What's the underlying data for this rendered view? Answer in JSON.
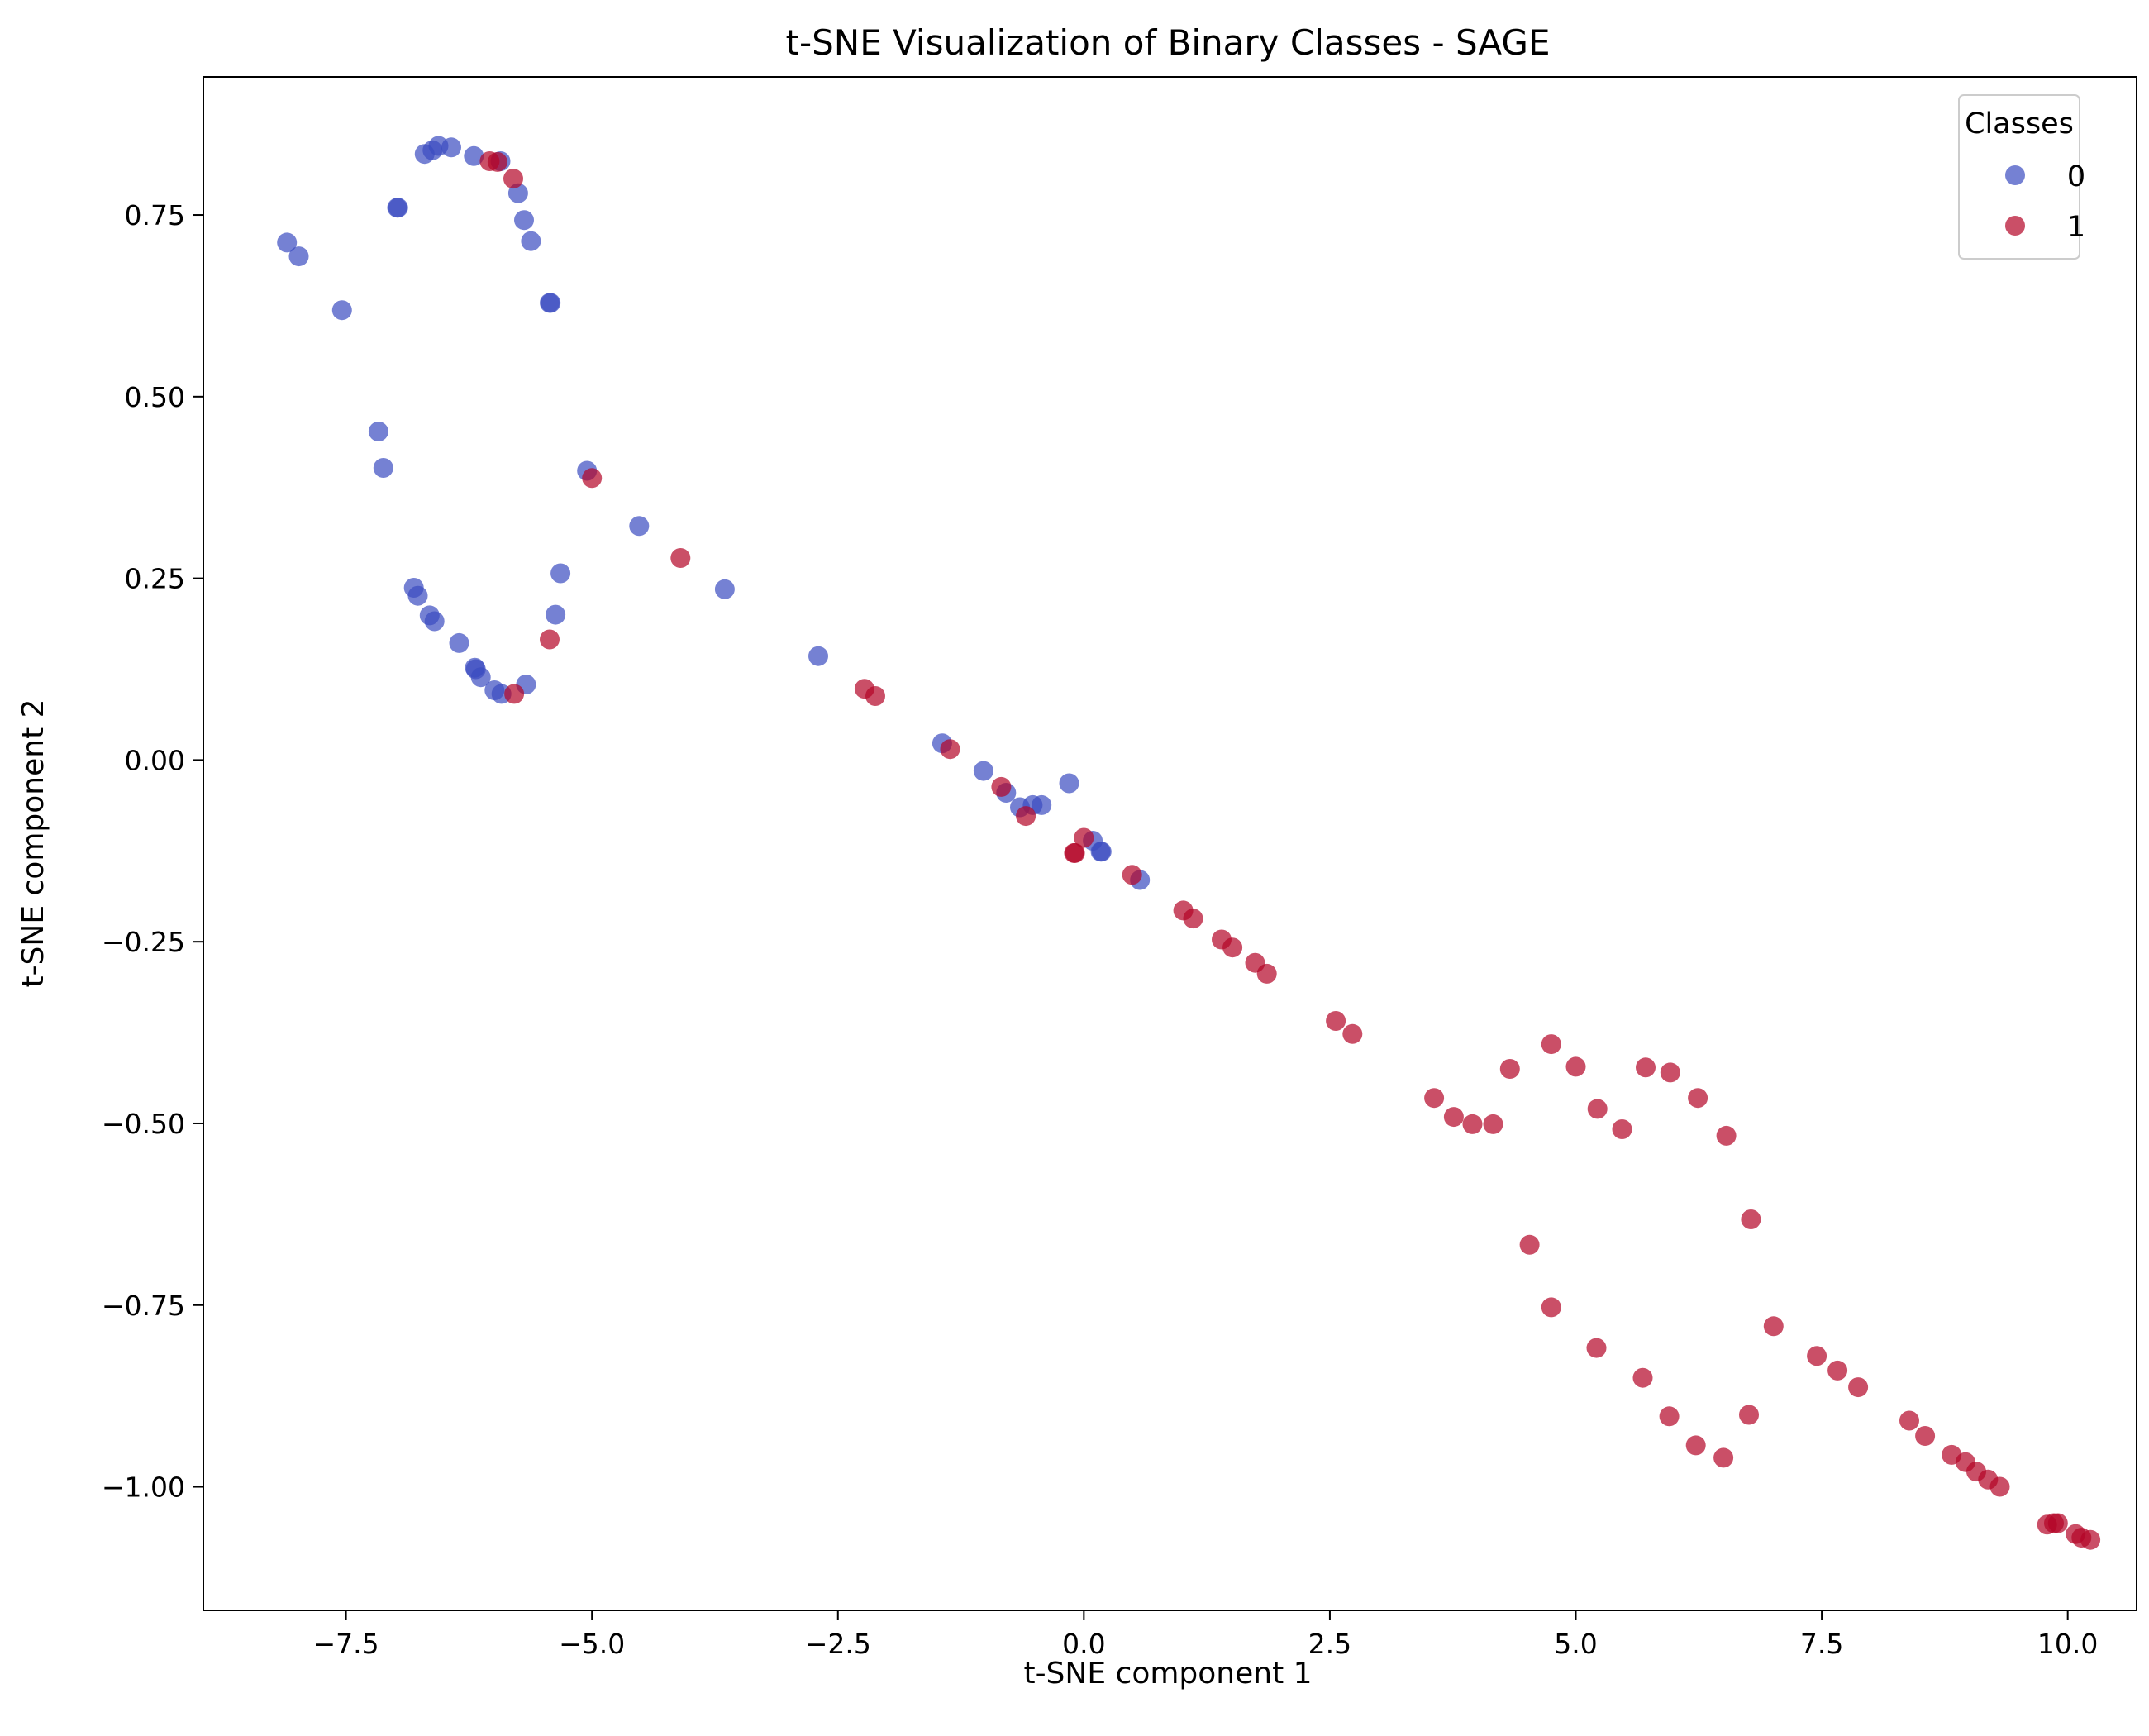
{
  "chart_data": {
    "type": "scatter",
    "title": "t-SNE Visualization of Binary Classes - SAGE",
    "xlabel": "t-SNE component 1",
    "ylabel": "t-SNE component 2",
    "xlim": [
      -8.95,
      10.7
    ],
    "ylim": [
      -1.17,
      0.94
    ],
    "xticks": [
      -7.5,
      -5.0,
      -2.5,
      0.0,
      2.5,
      5.0,
      7.5,
      10.0
    ],
    "xtick_labels": [
      "−7.5",
      "−5.0",
      "−2.5",
      "0.0",
      "2.5",
      "5.0",
      "7.5",
      "10.0"
    ],
    "yticks": [
      0.75,
      0.5,
      0.25,
      0.0,
      -0.25,
      -0.5,
      -0.75,
      -1.0
    ],
    "ytick_labels": [
      "0.75",
      "0.50",
      "0.25",
      "0.00",
      "−0.25",
      "−0.50",
      "−0.75",
      "−1.00"
    ],
    "grid": false,
    "legend": {
      "title": "Classes",
      "position": "top-right"
    },
    "series": [
      {
        "name": "0",
        "color": "#3b4cc0",
        "points": [
          [
            -8.1,
            0.712
          ],
          [
            -7.98,
            0.693
          ],
          [
            -7.54,
            0.619
          ],
          [
            -7.17,
            0.452
          ],
          [
            -7.12,
            0.402
          ],
          [
            -6.98,
            0.76
          ],
          [
            -6.97,
            0.76
          ],
          [
            -6.7,
            0.834
          ],
          [
            -6.62,
            0.839
          ],
          [
            -6.56,
            0.845
          ],
          [
            -6.43,
            0.843
          ],
          [
            -6.2,
            0.831
          ],
          [
            -5.93,
            0.824
          ],
          [
            -5.75,
            0.78
          ],
          [
            -5.69,
            0.743
          ],
          [
            -5.62,
            0.714
          ],
          [
            -5.43,
            0.629
          ],
          [
            -5.42,
            0.629
          ],
          [
            -5.05,
            0.398
          ],
          [
            -4.52,
            0.322
          ],
          [
            -6.81,
            0.237
          ],
          [
            -6.77,
            0.226
          ],
          [
            -6.65,
            0.199
          ],
          [
            -6.6,
            0.191
          ],
          [
            -6.35,
            0.161
          ],
          [
            -6.19,
            0.127
          ],
          [
            -6.18,
            0.125
          ],
          [
            -6.13,
            0.114
          ],
          [
            -5.99,
            0.096
          ],
          [
            -5.92,
            0.091
          ],
          [
            -5.67,
            0.104
          ],
          [
            -5.37,
            0.2
          ],
          [
            -5.32,
            0.257
          ],
          [
            -3.65,
            0.235
          ],
          [
            -2.7,
            0.143
          ],
          [
            -1.44,
            0.023
          ],
          [
            -1.02,
            -0.015
          ],
          [
            -0.79,
            -0.045
          ],
          [
            -0.65,
            -0.065
          ],
          [
            -0.52,
            -0.062
          ],
          [
            -0.43,
            -0.062
          ],
          [
            -0.15,
            -0.032
          ],
          [
            0.09,
            -0.111
          ],
          [
            0.17,
            -0.126
          ],
          [
            0.18,
            -0.126
          ],
          [
            0.57,
            -0.165
          ]
        ]
      },
      {
        "name": "1",
        "color": "#b40426",
        "points": [
          [
            -6.04,
            0.824
          ],
          [
            -5.96,
            0.823
          ],
          [
            -5.8,
            0.8
          ],
          [
            -5.0,
            0.388
          ],
          [
            -4.1,
            0.278
          ],
          [
            -5.43,
            0.166
          ],
          [
            -5.79,
            0.091
          ],
          [
            -2.23,
            0.098
          ],
          [
            -2.12,
            0.088
          ],
          [
            -1.36,
            0.015
          ],
          [
            -0.84,
            -0.037
          ],
          [
            -0.59,
            -0.077
          ],
          [
            0.0,
            -0.107
          ],
          [
            -0.1,
            -0.128
          ],
          [
            -0.09,
            -0.128
          ],
          [
            0.49,
            -0.158
          ],
          [
            1.01,
            -0.207
          ],
          [
            1.11,
            -0.218
          ],
          [
            1.4,
            -0.247
          ],
          [
            1.51,
            -0.258
          ],
          [
            1.74,
            -0.279
          ],
          [
            1.86,
            -0.294
          ],
          [
            2.56,
            -0.359
          ],
          [
            2.73,
            -0.377
          ],
          [
            3.56,
            -0.465
          ],
          [
            3.76,
            -0.491
          ],
          [
            3.95,
            -0.501
          ],
          [
            4.16,
            -0.501
          ],
          [
            4.33,
            -0.425
          ],
          [
            4.75,
            -0.391
          ],
          [
            5.0,
            -0.422
          ],
          [
            5.22,
            -0.48
          ],
          [
            5.47,
            -0.508
          ],
          [
            5.71,
            -0.423
          ],
          [
            5.96,
            -0.43
          ],
          [
            6.24,
            -0.465
          ],
          [
            6.53,
            -0.517
          ],
          [
            6.78,
            -0.632
          ],
          [
            4.53,
            -0.667
          ],
          [
            4.75,
            -0.753
          ],
          [
            5.21,
            -0.809
          ],
          [
            5.68,
            -0.85
          ],
          [
            5.95,
            -0.903
          ],
          [
            6.22,
            -0.943
          ],
          [
            6.5,
            -0.96
          ],
          [
            6.76,
            -0.901
          ],
          [
            7.01,
            -0.779
          ],
          [
            7.45,
            -0.82
          ],
          [
            7.66,
            -0.84
          ],
          [
            7.87,
            -0.863
          ],
          [
            8.39,
            -0.909
          ],
          [
            8.55,
            -0.93
          ],
          [
            8.82,
            -0.956
          ],
          [
            8.96,
            -0.966
          ],
          [
            9.07,
            -0.979
          ],
          [
            9.19,
            -0.99
          ],
          [
            9.31,
            -1.0
          ],
          [
            9.79,
            -1.052
          ],
          [
            9.86,
            -1.05
          ],
          [
            9.9,
            -1.05
          ],
          [
            10.08,
            -1.065
          ],
          [
            10.14,
            -1.07
          ],
          [
            10.23,
            -1.073
          ]
        ]
      }
    ]
  }
}
